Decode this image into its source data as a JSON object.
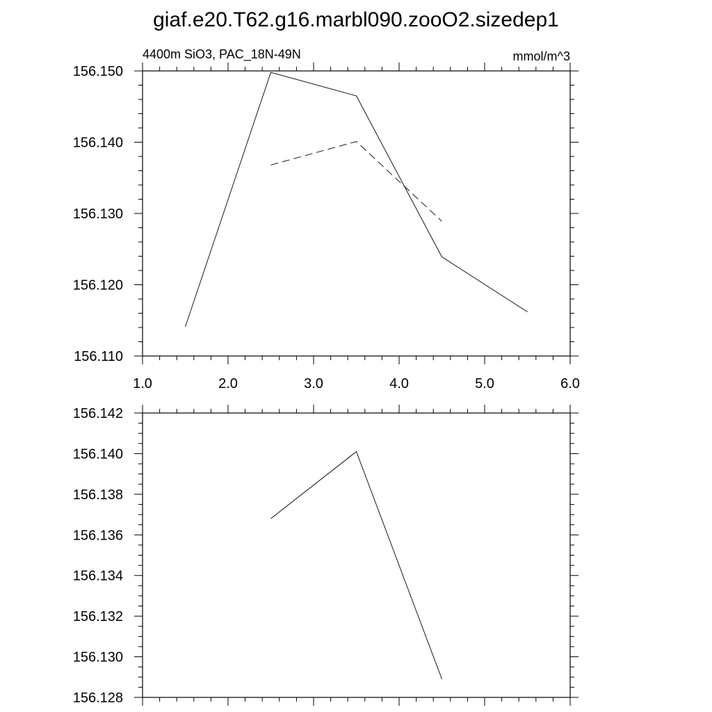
{
  "title": "giaf.e20.T62.g16.marbl090.zooO2.sizedep1",
  "chart_data": [
    {
      "type": "line",
      "subtitle_left": "4400m SiO3, PAC_18N-49N",
      "subtitle_right": "mmol/m^3",
      "xlim": [
        1.0,
        6.0
      ],
      "ylim": [
        156.11,
        156.15
      ],
      "xticks": [
        1.0,
        2.0,
        3.0,
        4.0,
        5.0,
        6.0
      ],
      "xtick_labels": [
        "1.0",
        "2.0",
        "3.0",
        "4.0",
        "5.0",
        "6.0"
      ],
      "yticks": [
        156.11,
        156.12,
        156.13,
        156.14,
        156.15
      ],
      "ytick_labels": [
        "156.110",
        "156.120",
        "156.130",
        "156.140",
        "156.150"
      ],
      "grid": false,
      "series": [
        {
          "style": "solid",
          "color": "#000000",
          "x": [
            1.5,
            2.5,
            3.5,
            4.5,
            5.5
          ],
          "y": [
            156.1141,
            156.1498,
            156.1465,
            156.1239,
            156.1162
          ]
        },
        {
          "style": "dashed",
          "color": "#000000",
          "x": [
            2.5,
            3.5,
            4.5
          ],
          "y": [
            156.1368,
            156.1401,
            156.1289
          ]
        }
      ]
    },
    {
      "type": "line",
      "xlim": [
        1.0,
        6.0
      ],
      "ylim": [
        156.128,
        156.142
      ],
      "xticks": [
        1.0,
        2.0,
        3.0,
        4.0,
        5.0,
        6.0
      ],
      "yticks": [
        156.128,
        156.13,
        156.132,
        156.134,
        156.136,
        156.138,
        156.14,
        156.142
      ],
      "ytick_labels": [
        "156.128",
        "156.130",
        "156.132",
        "156.134",
        "156.136",
        "156.138",
        "156.140",
        "156.142"
      ],
      "grid": false,
      "series": [
        {
          "style": "solid",
          "color": "#000000",
          "x": [
            2.5,
            3.5,
            4.5
          ],
          "y": [
            156.1368,
            156.1401,
            156.1289
          ]
        }
      ]
    }
  ]
}
